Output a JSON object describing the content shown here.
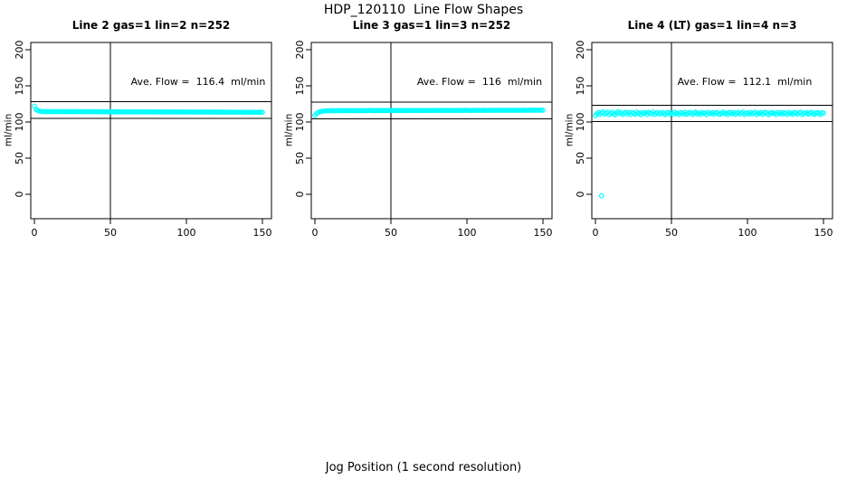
{
  "main_title": "HDP_120110  Line Flow Shapes",
  "xlabel": "Jog Position (1 second resolution)",
  "colors": {
    "points": "#00FFFF",
    "axis": "#000000",
    "background": "#FFFFFF"
  },
  "axes": {
    "ylabel": "ml/min",
    "y_ticks": [
      0,
      50,
      100,
      150,
      200
    ],
    "x_ticks": [
      0,
      50,
      100,
      150
    ],
    "xlim": [
      0,
      150
    ],
    "ylim": [
      0,
      200
    ],
    "grid": false
  },
  "chart_data": [
    {
      "type": "scatter",
      "title": "Line 2 gas=1 lin=2 n=252",
      "annotation": "Ave. Flow =  116.4  ml/min",
      "ave_flow": 116.4,
      "ref_lines": {
        "h_upper": 128.0,
        "h_lower": 104.8,
        "v": 50
      },
      "x_start": 0,
      "x_step": 1,
      "y": [
        122.0,
        117.6,
        116.0,
        115.2,
        114.8,
        114.6,
        114.5,
        114.3,
        114.6,
        114.2,
        114.4,
        114.3,
        114.5,
        114.2,
        114.4,
        114.3,
        114.4,
        114.2,
        114.5,
        114.3,
        114.4,
        114.1,
        114.4,
        114.2,
        114.3,
        114.4,
        114.2,
        114.4,
        114.1,
        114.3,
        114.4,
        114.2,
        114.3,
        114.1,
        114.4,
        114.2,
        114.3,
        114.2,
        114.4,
        114.1,
        114.3,
        114.2,
        114.3,
        114.1,
        114.2,
        114.3,
        114.1,
        114.3,
        114.0,
        114.2,
        114.3,
        114.1,
        114.2,
        114.0,
        114.3,
        114.1,
        114.2,
        114.0,
        114.2,
        114.1,
        114.2,
        114.0,
        114.1,
        114.2,
        114.0,
        114.1,
        113.9,
        114.1,
        114.2,
        114.0,
        114.1,
        113.9,
        114.1,
        114.0,
        114.1,
        113.9,
        114.0,
        114.1,
        113.9,
        114.0,
        113.8,
        114.0,
        114.1,
        113.9,
        114.0,
        113.8,
        114.0,
        113.9,
        114.0,
        113.8,
        113.9,
        114.0,
        113.8,
        113.9,
        113.7,
        113.9,
        114.0,
        113.8,
        113.9,
        113.7,
        113.9,
        113.8,
        113.9,
        113.7,
        113.8,
        113.9,
        113.7,
        113.8,
        113.6,
        113.8,
        113.9,
        113.7,
        113.8,
        113.6,
        113.8,
        113.7,
        113.8,
        113.6,
        113.7,
        113.8,
        113.6,
        113.7,
        113.5,
        113.7,
        113.8,
        113.6,
        113.7,
        113.5,
        113.7,
        113.6,
        113.7,
        113.5,
        113.6,
        113.7,
        113.5,
        113.6,
        113.4,
        113.6,
        113.7,
        113.5,
        113.6,
        113.4,
        113.6,
        113.5,
        113.6,
        113.4,
        113.5,
        113.6,
        113.4,
        113.5,
        113.5
      ],
      "extra_points": []
    },
    {
      "type": "scatter",
      "title": "Line 3 gas=1 lin=3 n=252",
      "annotation": "Ave. Flow =  116  ml/min",
      "ave_flow": 116,
      "ref_lines": {
        "h_upper": 127.6,
        "h_lower": 104.4,
        "v": 50
      },
      "x_start": 0,
      "x_step": 1,
      "y": [
        109.2,
        111.6,
        113.0,
        113.9,
        114.5,
        114.9,
        115.2,
        115.4,
        115.6,
        115.5,
        115.7,
        115.5,
        115.8,
        115.6,
        115.7,
        115.9,
        115.6,
        115.8,
        115.5,
        115.7,
        115.8,
        115.6,
        115.9,
        115.7,
        115.8,
        115.6,
        115.7,
        115.9,
        115.6,
        115.8,
        115.7,
        115.9,
        115.6,
        115.8,
        115.7,
        115.8,
        116.0,
        115.7,
        115.9,
        115.6,
        115.8,
        115.9,
        115.7,
        116.0,
        115.8,
        115.9,
        115.7,
        115.8,
        116.0,
        115.7,
        115.9,
        115.8,
        116.0,
        115.7,
        115.9,
        115.8,
        115.9,
        116.1,
        115.8,
        116.0,
        115.7,
        115.9,
        116.0,
        115.8,
        116.1,
        115.9,
        116.0,
        115.8,
        115.9,
        116.1,
        115.8,
        116.0,
        115.9,
        116.1,
        115.8,
        116.0,
        115.9,
        116.0,
        116.2,
        115.9,
        116.1,
        115.8,
        116.0,
        116.1,
        115.9,
        116.2,
        116.0,
        116.1,
        115.9,
        116.0,
        116.2,
        115.9,
        116.1,
        116.0,
        116.2,
        115.9,
        116.1,
        116.0,
        116.1,
        116.3,
        116.0,
        116.2,
        115.9,
        116.1,
        116.2,
        116.0,
        116.3,
        116.1,
        116.2,
        116.0,
        116.1,
        116.3,
        116.0,
        116.2,
        116.1,
        116.2,
        116.4,
        116.1,
        116.3,
        116.0,
        116.2,
        116.3,
        116.1,
        116.4,
        116.2,
        116.3,
        116.1,
        116.2,
        116.4,
        116.1,
        116.3,
        116.2,
        116.4,
        116.1,
        116.3,
        116.2,
        116.3,
        116.5,
        116.2,
        116.4,
        116.1,
        116.3,
        116.4,
        116.2,
        116.5,
        116.3,
        116.4,
        116.2,
        116.3,
        116.5,
        116.3
      ],
      "extra_points": []
    },
    {
      "type": "scatter",
      "title": "Line 4 (LT) gas=1 lin=4 n=3",
      "annotation": "Ave. Flow =  112.1  ml/min",
      "ave_flow": 112.1,
      "ref_lines": {
        "h_upper": 123.3,
        "h_lower": 100.9,
        "v": 50
      },
      "x_start": 0,
      "x_step": 1,
      "y": [
        108.8,
        111.5,
        113.2,
        110.6,
        112.8,
        114.1,
        111.0,
        112.3,
        113.6,
        110.2,
        112.0,
        113.9,
        111.3,
        110.0,
        112.6,
        114.3,
        111.8,
        113.1,
        110.5,
        112.2,
        113.7,
        111.1,
        112.9,
        110.3,
        113.4,
        112.0,
        110.8,
        113.9,
        111.6,
        112.4,
        110.1,
        113.0,
        111.9,
        112.7,
        110.6,
        113.5,
        112.1,
        111.2,
        113.8,
        110.4,
        112.5,
        113.2,
        110.9,
        112.0,
        113.6,
        111.4,
        110.2,
        112.8,
        113.3,
        111.0,
        112.4,
        110.7,
        113.8,
        111.7,
        112.2,
        110.3,
        113.1,
        112.6,
        111.1,
        113.5,
        110.8,
        112.1,
        113.4,
        111.5,
        110.4,
        112.9,
        113.7,
        111.2,
        112.3,
        110.6,
        113.2,
        111.8,
        112.5,
        110.1,
        113.6,
        112.0,
        111.4,
        113.0,
        110.9,
        112.7,
        113.3,
        111.0,
        110.5,
        112.4,
        113.9,
        111.6,
        112.1,
        110.2,
        113.4,
        112.8,
        111.3,
        113.0,
        110.7,
        112.5,
        113.6,
        111.1,
        112.2,
        113.8,
        110.4,
        111.9,
        112.6,
        110.8,
        113.3,
        111.5,
        112.0,
        113.7,
        110.3,
        112.4,
        111.7,
        113.1,
        110.6,
        112.9,
        113.5,
        111.2,
        110.1,
        112.6,
        113.2,
        111.8,
        112.3,
        110.5,
        113.4,
        111.4,
        112.7,
        110.9,
        113.0,
        112.1,
        110.4,
        113.6,
        111.6,
        112.2,
        110.7,
        113.3,
        112.8,
        111.0,
        112.5,
        113.9,
        110.2,
        111.9,
        112.4,
        113.1,
        110.8,
        112.0,
        113.5,
        111.3,
        110.5,
        112.7,
        113.2,
        111.7,
        110.3,
        112.9,
        112.3
      ],
      "extra_points": [
        [
          4,
          -2
        ]
      ]
    }
  ]
}
